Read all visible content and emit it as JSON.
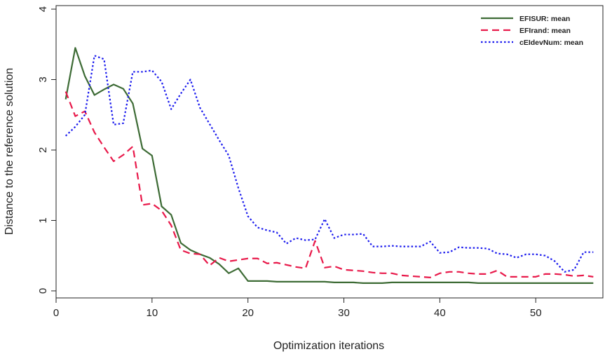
{
  "chart_data": {
    "type": "line",
    "title": "",
    "xlabel": "Optimization iterations",
    "ylabel": "Distance to the reference solution",
    "xlim": [
      0,
      57
    ],
    "ylim": [
      -0.1,
      4.05
    ],
    "x_ticks": [
      0,
      10,
      20,
      30,
      40,
      50
    ],
    "y_ticks": [
      0,
      1,
      2,
      3,
      4
    ],
    "grid": false,
    "legend_position": "top-right",
    "x": [
      1,
      2,
      3,
      4,
      5,
      6,
      7,
      8,
      9,
      10,
      11,
      12,
      13,
      14,
      15,
      16,
      17,
      18,
      19,
      20,
      21,
      22,
      23,
      24,
      25,
      26,
      27,
      28,
      29,
      30,
      31,
      32,
      33,
      34,
      35,
      36,
      37,
      38,
      39,
      40,
      41,
      42,
      43,
      44,
      45,
      46,
      47,
      48,
      49,
      50,
      51,
      52,
      53,
      54,
      55,
      56
    ],
    "series": [
      {
        "name": "EFISUR: mean",
        "color": "#3d6b35",
        "dash": "solid",
        "values": [
          2.72,
          3.45,
          3.05,
          2.78,
          2.86,
          2.93,
          2.87,
          2.66,
          2.02,
          1.92,
          1.2,
          1.08,
          0.68,
          0.58,
          0.52,
          0.47,
          0.38,
          0.25,
          0.32,
          0.14,
          0.14,
          0.14,
          0.13,
          0.13,
          0.13,
          0.13,
          0.13,
          0.13,
          0.12,
          0.12,
          0.12,
          0.11,
          0.11,
          0.11,
          0.12,
          0.12,
          0.12,
          0.12,
          0.12,
          0.12,
          0.12,
          0.12,
          0.12,
          0.11,
          0.11,
          0.11,
          0.11,
          0.11,
          0.11,
          0.11,
          0.11,
          0.11,
          0.11,
          0.11,
          0.11,
          0.11
        ]
      },
      {
        "name": "EFIrand: mean",
        "color": "#e8194a",
        "dash": "dashed",
        "values": [
          2.83,
          2.48,
          2.55,
          2.25,
          2.04,
          1.84,
          1.93,
          2.05,
          1.22,
          1.24,
          1.14,
          0.93,
          0.58,
          0.53,
          0.52,
          0.36,
          0.47,
          0.42,
          0.44,
          0.46,
          0.46,
          0.39,
          0.4,
          0.37,
          0.34,
          0.32,
          0.71,
          0.33,
          0.35,
          0.3,
          0.29,
          0.28,
          0.26,
          0.25,
          0.25,
          0.22,
          0.21,
          0.2,
          0.19,
          0.25,
          0.27,
          0.27,
          0.25,
          0.24,
          0.24,
          0.29,
          0.2,
          0.2,
          0.2,
          0.2,
          0.24,
          0.24,
          0.23,
          0.21,
          0.22,
          0.2
        ]
      },
      {
        "name": "cEIdevNum: mean",
        "color": "#1a1aee",
        "dash": "dotted",
        "values": [
          2.2,
          2.33,
          2.5,
          3.34,
          3.29,
          2.36,
          2.38,
          3.11,
          3.11,
          3.13,
          2.97,
          2.58,
          2.8,
          3.0,
          2.6,
          2.37,
          2.14,
          1.92,
          1.46,
          1.06,
          0.9,
          0.86,
          0.83,
          0.67,
          0.75,
          0.72,
          0.73,
          1.02,
          0.75,
          0.8,
          0.8,
          0.81,
          0.63,
          0.63,
          0.64,
          0.63,
          0.63,
          0.63,
          0.7,
          0.54,
          0.55,
          0.62,
          0.61,
          0.61,
          0.6,
          0.53,
          0.52,
          0.47,
          0.52,
          0.52,
          0.5,
          0.42,
          0.27,
          0.3,
          0.55,
          0.55
        ]
      }
    ]
  }
}
